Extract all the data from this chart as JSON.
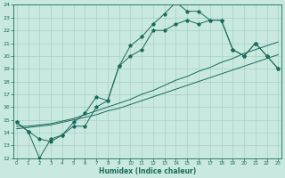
{
  "xlabel": "Humidex (Indice chaleur)",
  "x": [
    0,
    1,
    2,
    3,
    4,
    5,
    6,
    7,
    8,
    9,
    10,
    11,
    12,
    13,
    14,
    15,
    16,
    17,
    18,
    19,
    20,
    21,
    22,
    23
  ],
  "curve_top": [
    14.8,
    14.1,
    13.5,
    13.3,
    13.8,
    14.8,
    15.5,
    16.8,
    16.5,
    19.2,
    20.8,
    21.5,
    22.5,
    23.3,
    24.2,
    23.5,
    23.5,
    22.8,
    22.8,
    20.5,
    20.0,
    21.0,
    20.0,
    19.0
  ],
  "curve_mid": [
    14.8,
    14.1,
    12.0,
    13.5,
    13.8,
    14.5,
    14.5,
    16.0,
    16.5,
    19.2,
    20.0,
    20.5,
    22.0,
    22.0,
    22.5,
    22.8,
    22.5,
    22.8,
    22.8,
    20.5,
    20.0,
    21.0,
    20.0,
    19.0
  ],
  "curve_lin1": [
    14.5,
    14.5,
    14.6,
    14.7,
    14.9,
    15.1,
    15.4,
    15.7,
    16.0,
    16.3,
    16.6,
    17.0,
    17.3,
    17.7,
    18.1,
    18.4,
    18.8,
    19.1,
    19.5,
    19.8,
    20.2,
    20.5,
    20.8,
    21.1
  ],
  "curve_lin2": [
    14.3,
    14.4,
    14.5,
    14.6,
    14.8,
    15.0,
    15.2,
    15.4,
    15.7,
    15.9,
    16.2,
    16.5,
    16.8,
    17.1,
    17.4,
    17.7,
    18.0,
    18.3,
    18.6,
    18.9,
    19.2,
    19.5,
    19.8,
    20.1
  ],
  "bg_color": "#c8e8e0",
  "line_color": "#1a6b5a",
  "ylim": [
    12,
    24
  ],
  "xlim": [
    -0.3,
    23.3
  ]
}
